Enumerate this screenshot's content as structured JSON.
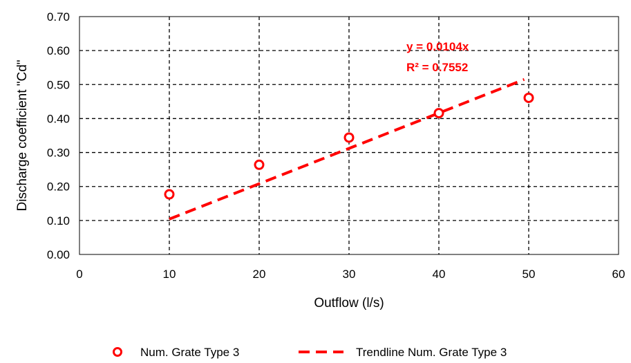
{
  "chart_data": {
    "type": "scatter",
    "title": "",
    "xlabel": "Outflow (l/s)",
    "ylabel": "Discharge coefficient \"Cd\"",
    "xlim": [
      0,
      60
    ],
    "ylim": [
      0,
      0.7
    ],
    "xticks": [
      0,
      10,
      20,
      30,
      40,
      50,
      60
    ],
    "yticks": [
      0.0,
      0.1,
      0.2,
      0.3,
      0.4,
      0.5,
      0.6,
      0.7
    ],
    "xtick_labels": [
      "0",
      "10",
      "20",
      "30",
      "40",
      "50",
      "60"
    ],
    "ytick_labels": [
      "0.00",
      "0.10",
      "0.20",
      "0.30",
      "0.40",
      "0.50",
      "0.60",
      "0.70"
    ],
    "grid": "dashed",
    "legend_position": "bottom",
    "series": [
      {
        "name": "Num. Grate Type 3",
        "kind": "scatter",
        "color": "#ff0000",
        "x": [
          10,
          20,
          30,
          40,
          50
        ],
        "y": [
          0.177,
          0.264,
          0.344,
          0.416,
          0.461
        ]
      },
      {
        "name": "Trendline Num. Grate Type 3",
        "kind": "line",
        "color": "#ff0000",
        "x": [
          10,
          49.5
        ],
        "y": [
          0.104,
          0.515
        ]
      }
    ],
    "annotations": [
      {
        "text": "y = 0.0104x",
        "color": "#ff0000"
      },
      {
        "text": "R² = 0.7552",
        "color": "#ff0000"
      }
    ]
  }
}
